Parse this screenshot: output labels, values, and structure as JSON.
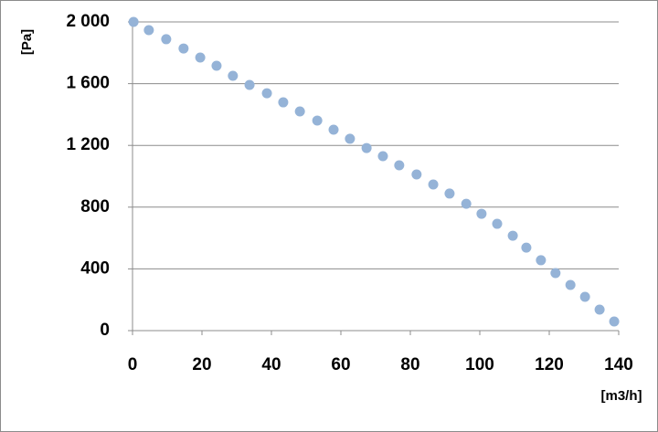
{
  "chart_data": {
    "type": "scatter",
    "y_label": "[Pa]",
    "x_label": "[m3/h]",
    "series": [
      {
        "color": "#95b3d7",
        "x": [
          0.3,
          4.7,
          9.7,
          14.7,
          19.5,
          24.2,
          28.9,
          33.7,
          38.7,
          43.4,
          48.2,
          53.2,
          57.9,
          62.6,
          67.4,
          72.1,
          76.8,
          81.8,
          86.6,
          91.3,
          96.1,
          100.5,
          105,
          109.5,
          113.4,
          117.6,
          121.8,
          126.1,
          130.3,
          134.5,
          138.7
        ],
        "values": [
          2000,
          1947,
          1888,
          1828,
          1769,
          1716,
          1651,
          1592,
          1538,
          1479,
          1420,
          1361,
          1302,
          1243,
          1183,
          1130,
          1071,
          1012,
          947,
          888,
          822,
          757,
          692,
          615,
          538,
          456,
          373,
          296,
          219,
          136,
          59
        ]
      }
    ],
    "xlim": [
      0,
      140
    ],
    "xticks": [
      0,
      20,
      40,
      60,
      80,
      100,
      120,
      140
    ],
    "ylim": [
      0,
      2000
    ],
    "yticks": [
      0,
      400,
      800,
      {
        "value": 1200,
        "label": "1 200"
      },
      {
        "value": 1600,
        "label": "1 600"
      },
      {
        "value": 2000,
        "label": "2 000"
      }
    ],
    "grid": true
  }
}
